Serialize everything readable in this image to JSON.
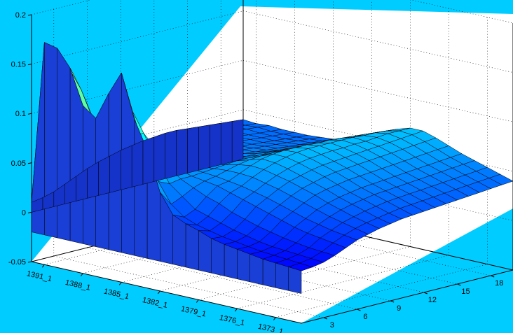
{
  "colors": {
    "figure_background": "#00ccff",
    "axes_background": "#ffffff",
    "colormap": "jet"
  },
  "chart_data": {
    "type": "surface",
    "grid": true,
    "zlim": [
      -0.05,
      0.2
    ],
    "zticks": [
      -0.05,
      0,
      0.05,
      0.1,
      0.15,
      0.2
    ],
    "ztick_labels": [
      "-0.05",
      "0",
      "0.05",
      "0.1",
      "0.15",
      "0.2"
    ],
    "x_tick_labels": [
      "1391_1",
      "1388_1",
      "1385_1",
      "1382_1",
      "1379_1",
      "1376_1",
      "1373_1"
    ],
    "y_tick_labels": [
      "3",
      "6",
      "9",
      "12",
      "15",
      "18"
    ],
    "y_ticks": [
      3,
      6,
      9,
      12,
      15,
      18
    ],
    "ylim": [
      1,
      20
    ],
    "x_count": 22,
    "x_tick_indices": [
      1,
      4,
      7,
      10,
      13,
      16,
      19
    ],
    "surface_z": [
      [
        0.01,
        0.175,
        0.172,
        0.155,
        0.12,
        0.11,
        0.138,
        0.162,
        0.118,
        0.09,
        0.05,
        0.03,
        0.024,
        0.02,
        0.015,
        0.012,
        0.01,
        0.008,
        0.006,
        0.005,
        0.004,
        0.003
      ],
      [
        0.012,
        0.14,
        0.15,
        0.13,
        0.1,
        0.092,
        0.11,
        0.12,
        0.08,
        0.055,
        0.035,
        0.025,
        0.02,
        0.017,
        0.014,
        0.012,
        0.01,
        0.008,
        0.007,
        0.006,
        0.005,
        0.004
      ],
      [
        0.015,
        0.1,
        0.11,
        0.1,
        0.085,
        0.08,
        0.09,
        0.095,
        0.07,
        0.05,
        0.04,
        0.03,
        0.026,
        0.022,
        0.018,
        0.015,
        0.012,
        0.01,
        0.009,
        0.008,
        0.007,
        0.006
      ],
      [
        0.02,
        0.08,
        0.085,
        0.078,
        0.07,
        0.068,
        0.072,
        0.078,
        0.062,
        0.052,
        0.046,
        0.04,
        0.036,
        0.03,
        0.026,
        0.022,
        0.019,
        0.016,
        0.014,
        0.012,
        0.011,
        0.01
      ],
      [
        0.025,
        0.065,
        0.068,
        0.065,
        0.06,
        0.058,
        0.06,
        0.064,
        0.056,
        0.052,
        0.05,
        0.048,
        0.044,
        0.04,
        0.036,
        0.032,
        0.028,
        0.024,
        0.021,
        0.019,
        0.017,
        0.015
      ],
      [
        0.03,
        0.058,
        0.06,
        0.058,
        0.055,
        0.054,
        0.055,
        0.057,
        0.054,
        0.053,
        0.052,
        0.05,
        0.048,
        0.045,
        0.042,
        0.038,
        0.034,
        0.03,
        0.027,
        0.024,
        0.022,
        0.02
      ],
      [
        0.034,
        0.054,
        0.055,
        0.054,
        0.052,
        0.052,
        0.053,
        0.054,
        0.053,
        0.054,
        0.055,
        0.055,
        0.054,
        0.051,
        0.048,
        0.044,
        0.04,
        0.036,
        0.032,
        0.029,
        0.026,
        0.023
      ],
      [
        0.037,
        0.052,
        0.053,
        0.052,
        0.051,
        0.051,
        0.052,
        0.053,
        0.053,
        0.055,
        0.058,
        0.06,
        0.059,
        0.056,
        0.053,
        0.049,
        0.045,
        0.04,
        0.036,
        0.032,
        0.029,
        0.026
      ],
      [
        0.04,
        0.05,
        0.051,
        0.05,
        0.05,
        0.05,
        0.051,
        0.052,
        0.053,
        0.056,
        0.06,
        0.064,
        0.063,
        0.06,
        0.056,
        0.052,
        0.048,
        0.043,
        0.039,
        0.035,
        0.031,
        0.028
      ],
      [
        0.042,
        0.049,
        0.05,
        0.049,
        0.049,
        0.049,
        0.05,
        0.051,
        0.053,
        0.056,
        0.061,
        0.066,
        0.066,
        0.063,
        0.059,
        0.055,
        0.05,
        0.045,
        0.041,
        0.037,
        0.033,
        0.03
      ],
      [
        0.044,
        0.048,
        0.049,
        0.048,
        0.048,
        0.048,
        0.049,
        0.05,
        0.052,
        0.056,
        0.061,
        0.067,
        0.068,
        0.065,
        0.061,
        0.057,
        0.052,
        0.047,
        0.043,
        0.039,
        0.035,
        0.031
      ],
      [
        0.045,
        0.047,
        0.048,
        0.047,
        0.047,
        0.047,
        0.048,
        0.049,
        0.052,
        0.056,
        0.061,
        0.067,
        0.069,
        0.066,
        0.062,
        0.058,
        0.053,
        0.048,
        0.044,
        0.04,
        0.036,
        0.032
      ],
      [
        0.046,
        0.046,
        0.047,
        0.046,
        0.046,
        0.046,
        0.047,
        0.048,
        0.051,
        0.055,
        0.06,
        0.067,
        0.069,
        0.067,
        0.063,
        0.059,
        0.054,
        0.049,
        0.045,
        0.041,
        0.037,
        0.033
      ],
      [
        0.046,
        0.045,
        0.046,
        0.045,
        0.045,
        0.045,
        0.046,
        0.047,
        0.05,
        0.054,
        0.06,
        0.066,
        0.069,
        0.067,
        0.064,
        0.06,
        0.055,
        0.05,
        0.046,
        0.042,
        0.038,
        0.034
      ],
      [
        0.045,
        0.044,
        0.045,
        0.044,
        0.044,
        0.044,
        0.045,
        0.046,
        0.049,
        0.053,
        0.059,
        0.066,
        0.069,
        0.068,
        0.065,
        0.061,
        0.056,
        0.051,
        0.047,
        0.043,
        0.039,
        0.035
      ],
      [
        0.044,
        0.043,
        0.044,
        0.043,
        0.043,
        0.043,
        0.044,
        0.045,
        0.048,
        0.052,
        0.058,
        0.065,
        0.069,
        0.068,
        0.066,
        0.062,
        0.057,
        0.052,
        0.048,
        0.044,
        0.04,
        0.036
      ],
      [
        0.043,
        0.042,
        0.043,
        0.042,
        0.042,
        0.042,
        0.043,
        0.044,
        0.047,
        0.051,
        0.057,
        0.064,
        0.068,
        0.069,
        0.067,
        0.063,
        0.058,
        0.053,
        0.049,
        0.045,
        0.041,
        0.037
      ],
      [
        0.042,
        0.041,
        0.042,
        0.041,
        0.041,
        0.041,
        0.042,
        0.043,
        0.046,
        0.05,
        0.056,
        0.063,
        0.068,
        0.07,
        0.068,
        0.064,
        0.059,
        0.054,
        0.05,
        0.046,
        0.042,
        0.038
      ],
      [
        0.041,
        0.04,
        0.041,
        0.04,
        0.04,
        0.04,
        0.041,
        0.042,
        0.045,
        0.049,
        0.055,
        0.062,
        0.067,
        0.07,
        0.069,
        0.065,
        0.06,
        0.055,
        0.051,
        0.047,
        0.043,
        0.039
      ],
      [
        0.04,
        0.039,
        0.04,
        0.039,
        0.039,
        0.039,
        0.04,
        0.041,
        0.044,
        0.048,
        0.054,
        0.061,
        0.066,
        0.07,
        0.07,
        0.066,
        0.061,
        0.056,
        0.052,
        0.048,
        0.044,
        0.04
      ]
    ]
  }
}
